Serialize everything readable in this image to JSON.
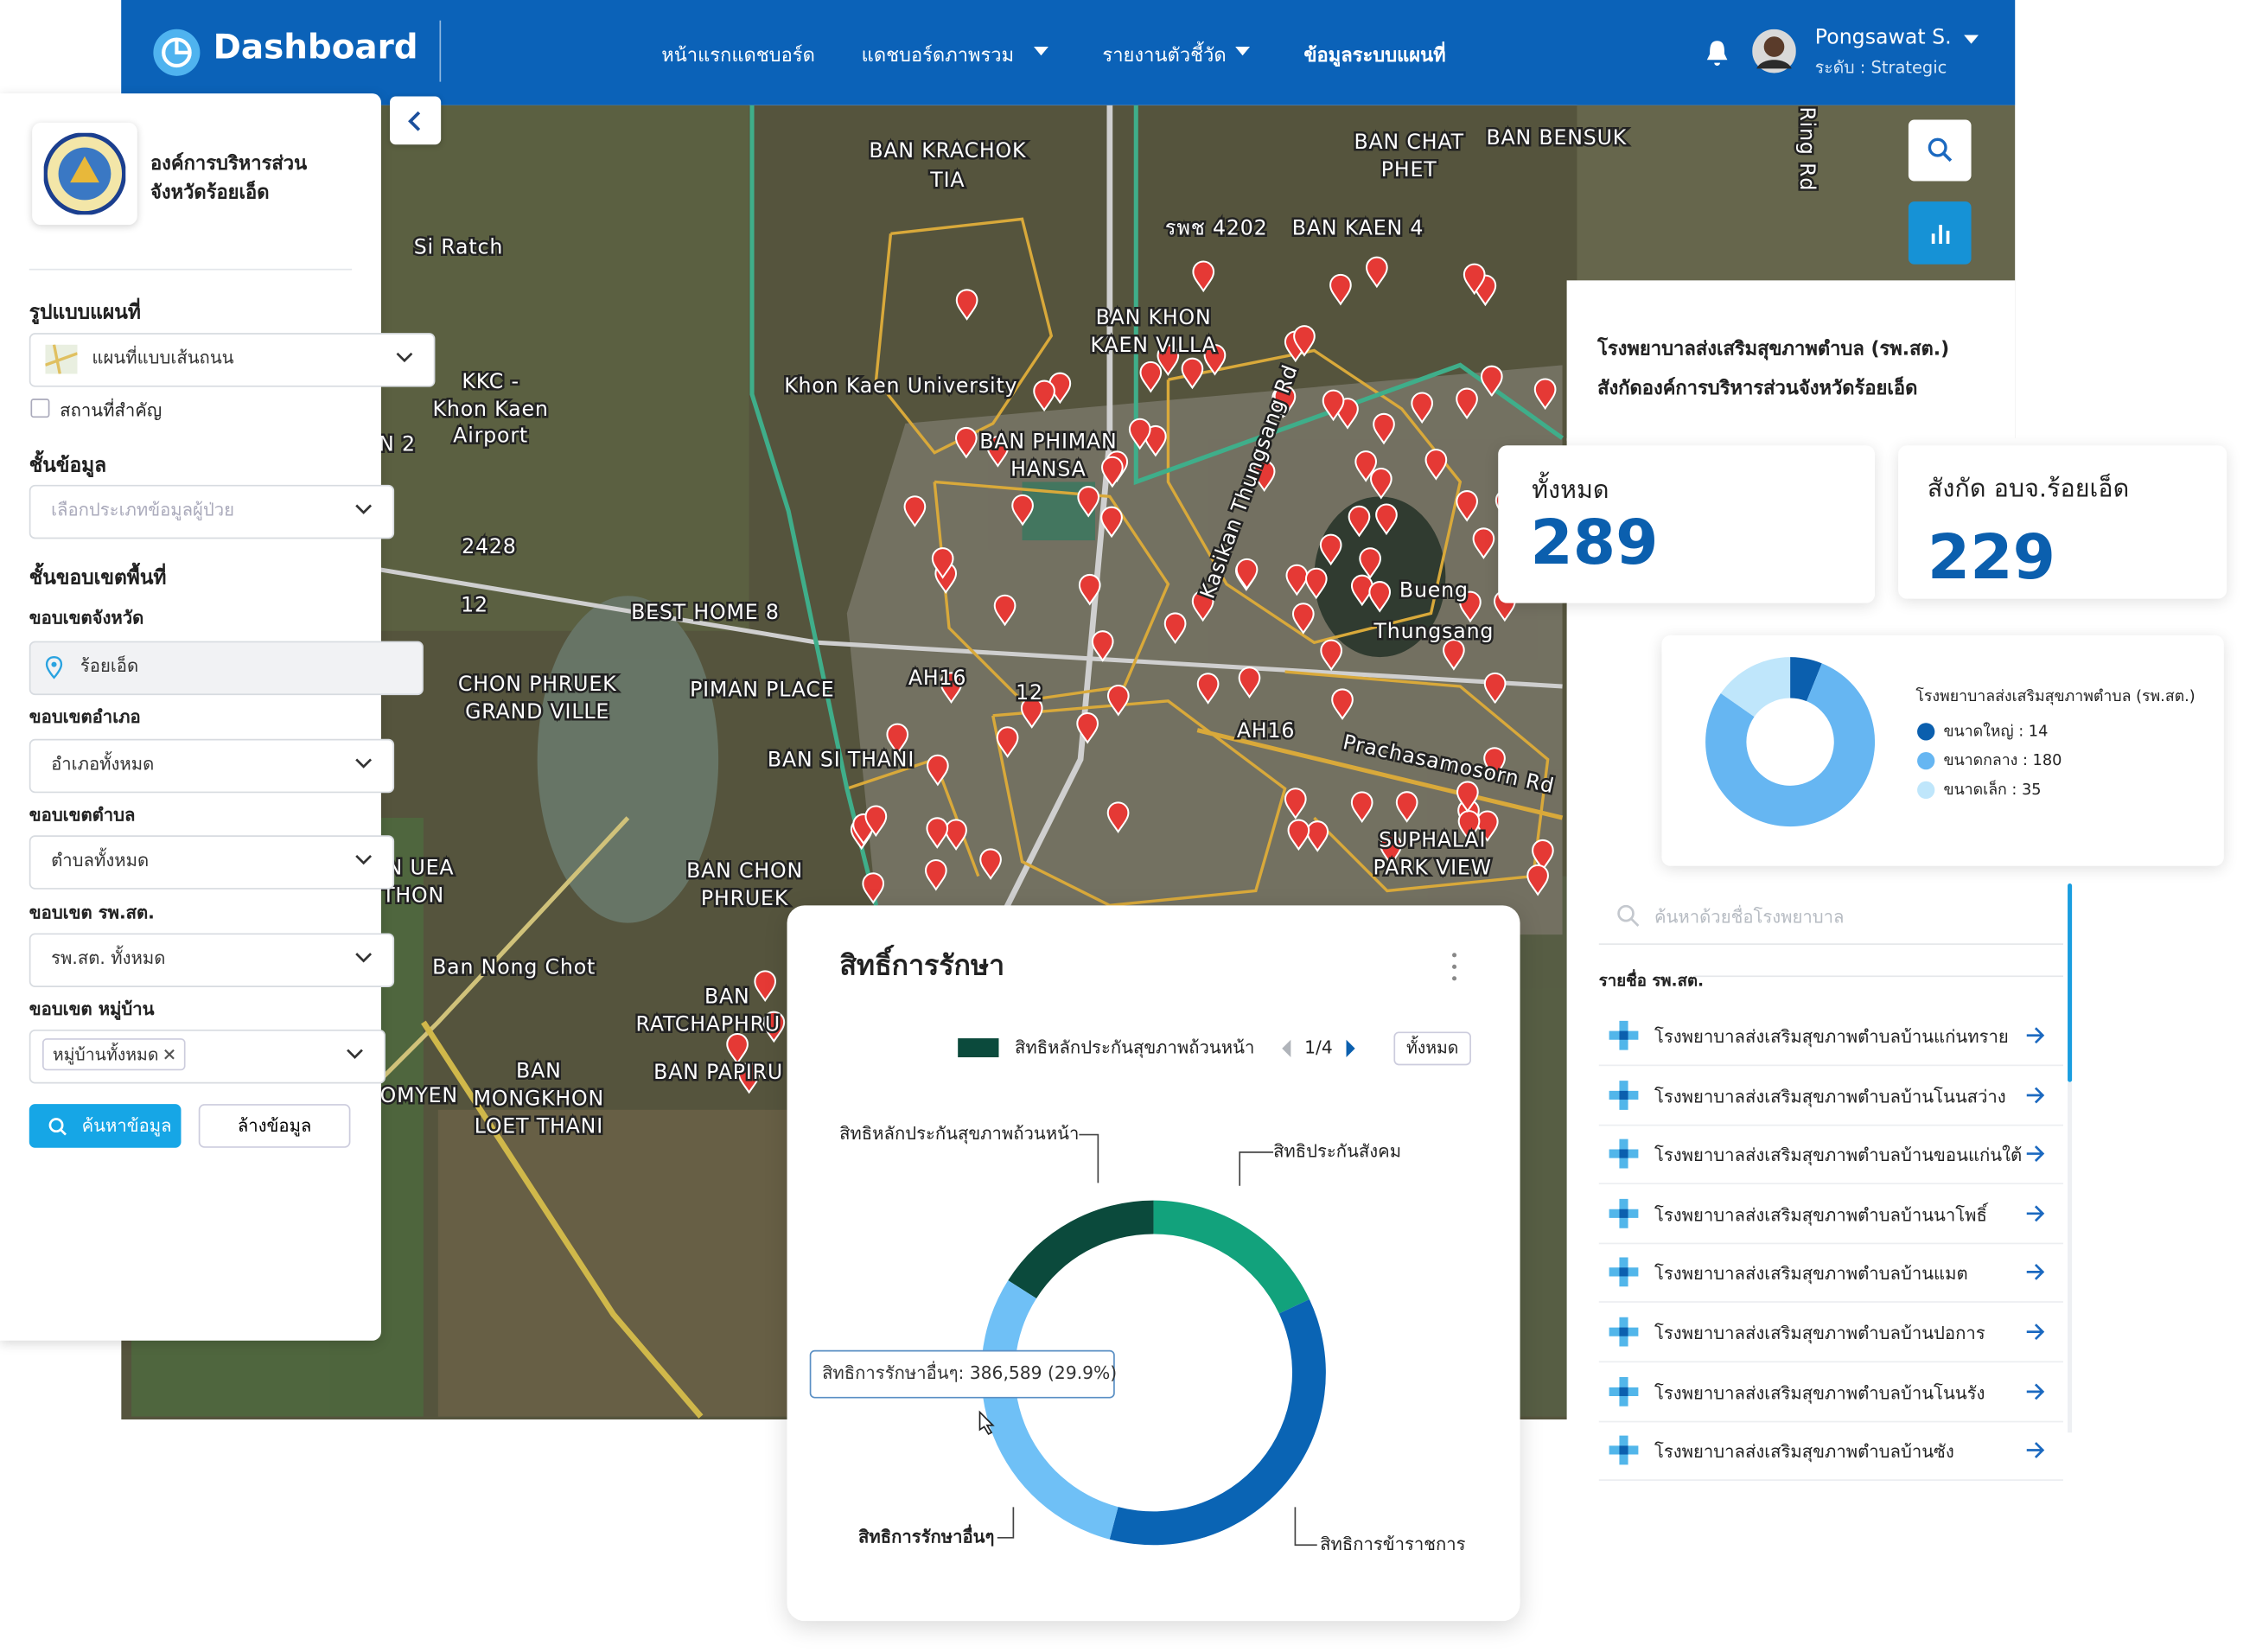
{
  "header": {
    "brand": "Dashboard",
    "nav": [
      "หน้าแรกแดชบอร์ด",
      "แดชบอร์ดภาพรวม",
      "รายงานตัวชี้วัด",
      "ข้อมูลระบบแผนที่"
    ],
    "user_name": "Pongsawat S.",
    "user_level": "ระดับ : Strategic"
  },
  "sidebar": {
    "org_name": [
      "องค์การบริหารส่วน",
      "จังหวัดร้อยเอ็ด"
    ],
    "map_style_heading": "รูปแบบแผนที่",
    "map_style": "แผนที่แบบเส้นถนน",
    "landmarks": "สถานที่สำคัญ",
    "layer_heading": "ชั้นข้อมูล",
    "layer_placeholder": "เลือกประเภทข้อมูลผู้ป่วย",
    "area_heading": "ชั้นขอบเขตพื้นที่",
    "province_label": "ขอบเขตจังหวัด",
    "province": "ร้อยเอ็ด",
    "district_label": "ขอบเขตอำเภอ",
    "district": "อำเภอทั้งหมด",
    "subdistrict_label": "ขอบเขตตำบล",
    "subdistrict": "ตำบลทั้งหมด",
    "hospital_label": "ขอบเขต รพ.สต.",
    "hospital": "รพ.สต. ทั้งหมด",
    "village_label": "ขอบเขต หมู่บ้าน",
    "village_tag": "หมู่บ้านทั้งหมด",
    "search_button": "ค้นหาข้อมูล",
    "clear_button": "ล้างข้อมูล"
  },
  "map": {
    "labels": [
      "BAN KRACHOK",
      "TIA",
      "Si Ratch",
      "KKC -",
      "Khon Kaen",
      "Airport",
      "2428",
      "12",
      "BEST HOME 8",
      "CHON PHRUEK",
      "GRAND VILLE",
      "PIMAN PLACE",
      "BAN SI THANI",
      "Khon Kaen University",
      "BAN PHIMAN",
      "HANSA",
      "BAN KHON",
      "KAEN VILLA",
      "รพช 4202",
      "BAN KAEN 4",
      "BAN CHAT",
      "PHET",
      "BAN BENSUK",
      "Bueng",
      "Thungsang",
      "SUPHALAI",
      "PARK VIEW",
      "AH16",
      "12",
      "AH16",
      "BAN CHON",
      "PHRUEK",
      "N UEA",
      "THON",
      "Ban Nong Chot",
      "BAN",
      "RATCHAPHRU",
      "BAN PAPIRU",
      "BAN",
      "MONGKHON",
      "LOET THANI",
      "OMYEN",
      "N 2",
      "Prachasamosorn Rd",
      "Kasikan Thungsang Rd",
      "Ring Rd"
    ]
  },
  "right_panel": {
    "title": [
      "โรงพยาบาลส่งเสริมสุขภาพตำบล (รพ.สต.)",
      "สังกัดองค์การบริหารส่วนจังหวัดร้อยเอ็ด"
    ],
    "stats": [
      {
        "label": "ทั้งหมด",
        "value": 289
      },
      {
        "label": "สังกัด อบจ.ร้อยเอ็ด",
        "value": 229
      }
    ],
    "search_placeholder": "ค้นหาด้วยชื่อโรงพยาบาล",
    "list_heading": "รายชื่อ รพ.สต.",
    "hospitals": [
      "โรงพยาบาลส่งเสริมสุขภาพตำบลบ้านแก่นทราย",
      "โรงพยาบาลส่งเสริมสุขภาพตำบลบ้านโนนสว่าง",
      "โรงพยาบาลส่งเสริมสุขภาพตำบลบ้านขอนแก่นใต้",
      "โรงพยาบาลส่งเสริมสุขภาพตำบลบ้านนาโพธิ์",
      "โรงพยาบาลส่งเสริมสุขภาพตำบลบ้านแมต",
      "โรงพยาบาลส่งเสริมสุขภาพตำบลบ้านปอการ",
      "โรงพยาบาลส่งเสริมสุขภาพตำบลบ้านโนนรัง",
      "โรงพยาบาลส่งเสริมสุขภาพตำบลบ้านซัง"
    ]
  },
  "chart_data": [
    {
      "type": "donut",
      "title": "สิทธิ์การรักษา",
      "categories": [
        "สิทธิหลักประกันสุขภาพถ้วนหน้า",
        "สิทธิประกันสังคม",
        "สิทธิการข้าราชการ",
        "สิทธิการรักษาอื่นๆ"
      ],
      "values": [
        206900,
        232700,
        467000,
        386589
      ],
      "colors": [
        "#0b4a3c",
        "#12a27c",
        "#0a64b4",
        "#6fc0f6"
      ],
      "legend_page": "1/4",
      "legend_all": "ทั้งหมด",
      "tooltip": "สิทธิการรักษาอื่นๆ: 386,589 (29.9%)"
    },
    {
      "type": "donut",
      "title": "โรงพยาบาลส่งเสริมสุขภาพตำบล (รพ.สต.)",
      "values": [
        14,
        180,
        35
      ],
      "value_labels": [
        "ขนาดใหญ่ : 14",
        "ขนาดกลาง : 180",
        "ขนาดเล็ก : 35"
      ],
      "colors": [
        "#0b5fae",
        "#66b6f2",
        "#bfe6fb"
      ]
    }
  ]
}
